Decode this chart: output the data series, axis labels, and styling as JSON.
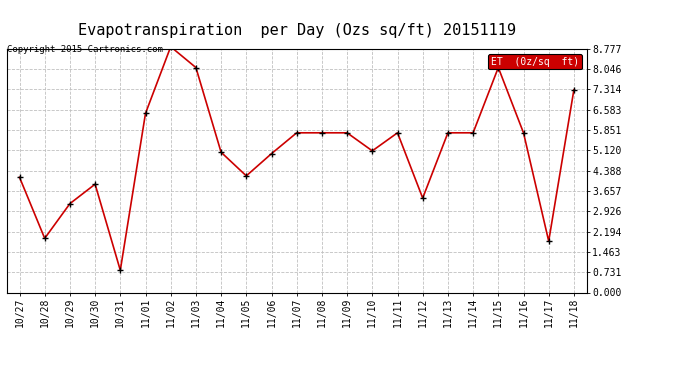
{
  "title": "Evapotranspiration  per Day (Ozs sq/ft) 20151119",
  "copyright": "Copyright 2015 Cartronics.com",
  "legend_label": "ET  (0z/sq  ft)",
  "x_labels": [
    "10/27",
    "10/28",
    "10/29",
    "10/30",
    "10/31",
    "11/01",
    "11/02",
    "11/03",
    "11/04",
    "11/05",
    "11/06",
    "11/07",
    "11/08",
    "11/09",
    "11/10",
    "11/11",
    "11/12",
    "11/13",
    "11/14",
    "11/15",
    "11/16",
    "11/17",
    "11/18"
  ],
  "y_values": [
    4.15,
    1.95,
    3.2,
    3.9,
    0.8,
    6.45,
    8.85,
    8.1,
    5.05,
    4.2,
    5.0,
    5.75,
    5.75,
    5.75,
    5.1,
    5.75,
    3.4,
    5.75,
    5.75,
    8.1,
    5.75,
    1.85,
    7.3
  ],
  "line_color": "#cc0000",
  "marker_color": "#000000",
  "background_color": "#ffffff",
  "grid_color": "#c0c0c0",
  "title_fontsize": 11,
  "axis_fontsize": 7,
  "copyright_fontsize": 6.5,
  "yticks": [
    0.0,
    0.731,
    1.463,
    2.194,
    2.926,
    3.657,
    4.388,
    5.12,
    5.851,
    6.583,
    7.314,
    8.046,
    8.777
  ],
  "ylim": [
    0.0,
    8.777
  ],
  "legend_bg": "#cc0000",
  "legend_text_color": "#ffffff",
  "legend_fontsize": 7
}
